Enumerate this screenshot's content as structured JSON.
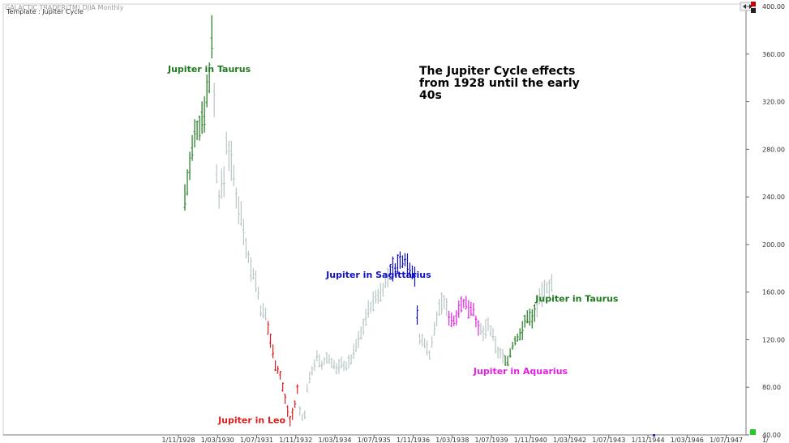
{
  "window": {
    "symbol_line": "GALACTIC TRADER(TM)    DJIA Monthly",
    "template_label": "Template : Jupiter Cycle"
  },
  "colors": {
    "neutral": "#b8c6c6",
    "green": "#1f7a1f",
    "red": "#e01c1c",
    "blue": "#1010c8",
    "magenta": "#e020e0",
    "title_text": "#000000",
    "grid_tick": "#999999",
    "corner_square": "#22cc22",
    "arrow_icon": "#c00000"
  },
  "chart_data": {
    "type": "ohlc",
    "title": "The Jupiter Cycle effects from 1928 until the early 40s",
    "title_lines": [
      "The Jupiter Cycle effects",
      "from 1928 until the early",
      "40s"
    ],
    "xlabel": "",
    "ylabel": "",
    "ylim": [
      40,
      400
    ],
    "yticks": [
      "40.00",
      "80.00",
      "120.00",
      "160.00",
      "200.00",
      "240.00",
      "280.00",
      "320.00",
      "360.00",
      "400.00"
    ],
    "ytick_values": [
      40,
      80,
      120,
      160,
      200,
      240,
      280,
      320,
      360,
      400
    ],
    "xticks": [
      "1/11/1928",
      "1/03/1930",
      "1/07/1931",
      "1/11/1932",
      "1/03/1934",
      "1/07/1935",
      "1/11/1936",
      "1/03/1938",
      "1/07/1939",
      "1/11/1940",
      "1/03/1942",
      "1/07/1943",
      "1/11/1944",
      "1/03/1946",
      "1/07/1947",
      "1/"
    ],
    "xtick_months": [
      0,
      16,
      32,
      48,
      64,
      80,
      96,
      112,
      128,
      144,
      160,
      176,
      192,
      208,
      224,
      240
    ],
    "x_start": "1928-11",
    "x_end": "1948-11",
    "grid": false,
    "annotations": [
      {
        "text": "Jupiter in Taurus",
        "color": "green",
        "month": 0,
        "price": 345
      },
      {
        "text": "Jupiter in Leo",
        "color": "red",
        "month": 4,
        "price": 50
      },
      {
        "text": "Jupiter in Sagittarius",
        "color": "blue",
        "month": 72,
        "price": 172
      },
      {
        "text": "Jupiter in Aquarius",
        "color": "magenta",
        "month": 119,
        "price": 91
      },
      {
        "text": "Jupiter in Taurus",
        "color": "green",
        "month": 144,
        "price": 152
      }
    ],
    "anchors": [
      {
        "m": 0,
        "v": 240
      },
      {
        "m": 2,
        "v": 265
      },
      {
        "m": 4,
        "v": 290
      },
      {
        "m": 6,
        "v": 300
      },
      {
        "m": 8,
        "v": 315
      },
      {
        "m": 10,
        "v": 340
      },
      {
        "m": 11,
        "v": 380
      },
      {
        "m": 12,
        "v": 320
      },
      {
        "m": 13,
        "v": 260
      },
      {
        "m": 14,
        "v": 240
      },
      {
        "m": 16,
        "v": 255
      },
      {
        "m": 17,
        "v": 285
      },
      {
        "m": 19,
        "v": 270
      },
      {
        "m": 21,
        "v": 240
      },
      {
        "m": 23,
        "v": 225
      },
      {
        "m": 25,
        "v": 200
      },
      {
        "m": 27,
        "v": 180
      },
      {
        "m": 29,
        "v": 170
      },
      {
        "m": 31,
        "v": 145
      },
      {
        "m": 33,
        "v": 140
      },
      {
        "m": 35,
        "v": 120
      },
      {
        "m": 37,
        "v": 100
      },
      {
        "m": 39,
        "v": 90
      },
      {
        "m": 41,
        "v": 70
      },
      {
        "m": 43,
        "v": 52
      },
      {
        "m": 45,
        "v": 65
      },
      {
        "m": 46,
        "v": 78
      },
      {
        "m": 47,
        "v": 60
      },
      {
        "m": 48,
        "v": 55
      },
      {
        "m": 49,
        "v": 56
      },
      {
        "m": 50,
        "v": 80
      },
      {
        "m": 52,
        "v": 95
      },
      {
        "m": 54,
        "v": 105
      },
      {
        "m": 56,
        "v": 98
      },
      {
        "m": 58,
        "v": 105
      },
      {
        "m": 60,
        "v": 102
      },
      {
        "m": 62,
        "v": 95
      },
      {
        "m": 64,
        "v": 100
      },
      {
        "m": 66,
        "v": 98
      },
      {
        "m": 68,
        "v": 104
      },
      {
        "m": 70,
        "v": 115
      },
      {
        "m": 72,
        "v": 125
      },
      {
        "m": 74,
        "v": 140
      },
      {
        "m": 76,
        "v": 148
      },
      {
        "m": 78,
        "v": 155
      },
      {
        "m": 80,
        "v": 160
      },
      {
        "m": 82,
        "v": 168
      },
      {
        "m": 84,
        "v": 178
      },
      {
        "m": 86,
        "v": 180
      },
      {
        "m": 88,
        "v": 185
      },
      {
        "m": 90,
        "v": 188
      },
      {
        "m": 92,
        "v": 180
      },
      {
        "m": 94,
        "v": 175
      },
      {
        "m": 95,
        "v": 140
      },
      {
        "m": 96,
        "v": 120
      },
      {
        "m": 98,
        "v": 118
      },
      {
        "m": 100,
        "v": 108
      },
      {
        "m": 102,
        "v": 128
      },
      {
        "m": 104,
        "v": 148
      },
      {
        "m": 106,
        "v": 152
      },
      {
        "m": 108,
        "v": 140
      },
      {
        "m": 110,
        "v": 135
      },
      {
        "m": 112,
        "v": 148
      },
      {
        "m": 114,
        "v": 150
      },
      {
        "m": 116,
        "v": 148
      },
      {
        "m": 118,
        "v": 146
      },
      {
        "m": 120,
        "v": 128
      },
      {
        "m": 122,
        "v": 126
      },
      {
        "m": 124,
        "v": 132
      },
      {
        "m": 126,
        "v": 122
      },
      {
        "m": 128,
        "v": 110
      },
      {
        "m": 130,
        "v": 106
      },
      {
        "m": 132,
        "v": 102
      },
      {
        "m": 134,
        "v": 115
      },
      {
        "m": 136,
        "v": 122
      },
      {
        "m": 138,
        "v": 128
      },
      {
        "m": 140,
        "v": 140
      },
      {
        "m": 142,
        "v": 138
      },
      {
        "m": 144,
        "v": 148
      },
      {
        "m": 146,
        "v": 158
      },
      {
        "m": 148,
        "v": 164
      },
      {
        "m": 150,
        "v": 168
      }
    ],
    "segments": [
      {
        "from": 0,
        "to": 11,
        "color": "green"
      },
      {
        "from": 34,
        "to": 46,
        "color": "red"
      },
      {
        "from": 84,
        "to": 95,
        "color": "blue"
      },
      {
        "from": 108,
        "to": 120,
        "color": "magenta"
      },
      {
        "from": 131,
        "to": 143,
        "color": "green"
      },
      {
        "from": 155,
        "to": 167,
        "color": "red"
      }
    ]
  }
}
